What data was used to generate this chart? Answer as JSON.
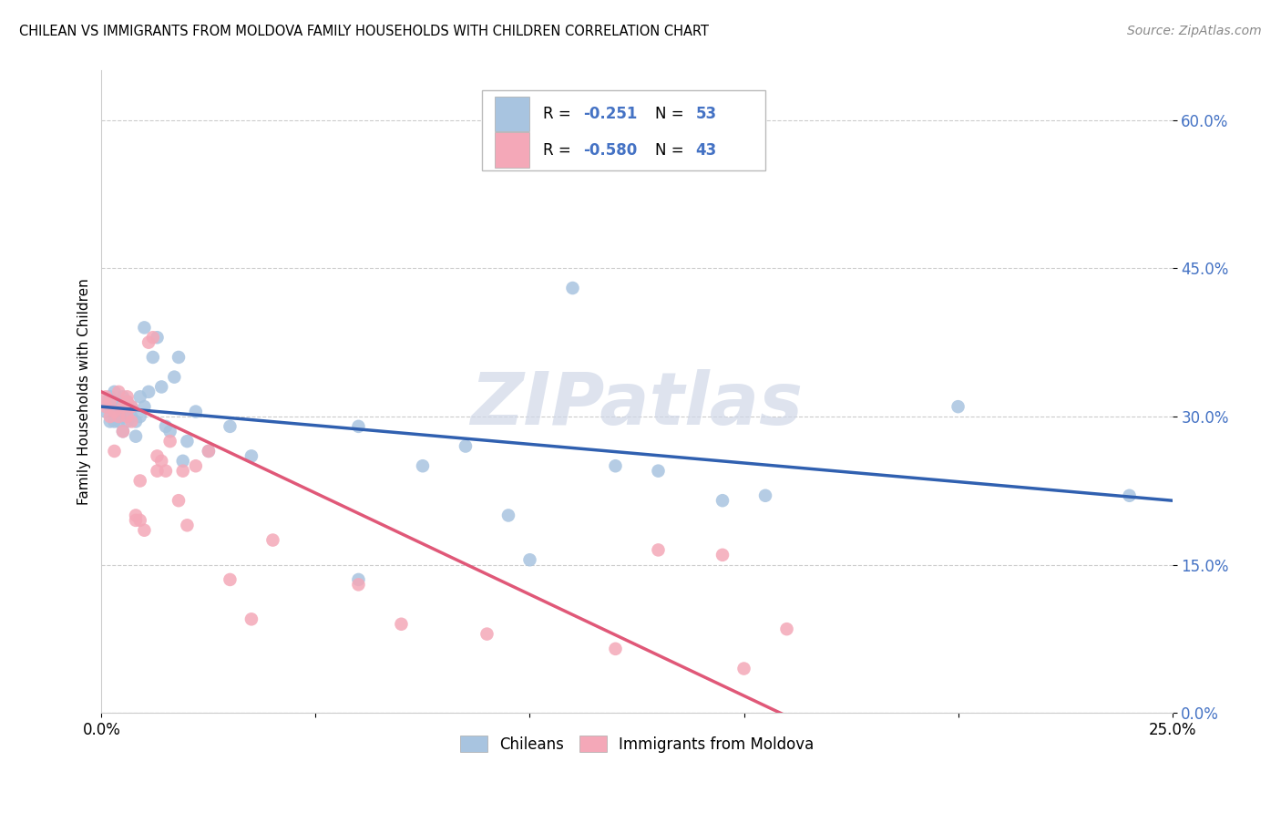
{
  "title": "CHILEAN VS IMMIGRANTS FROM MOLDOVA FAMILY HOUSEHOLDS WITH CHILDREN CORRELATION CHART",
  "source": "Source: ZipAtlas.com",
  "ylabel": "Family Households with Children",
  "xlim": [
    0.0,
    0.25
  ],
  "ylim": [
    0.0,
    0.65
  ],
  "yticks": [
    0.0,
    0.15,
    0.3,
    0.45,
    0.6
  ],
  "ytick_labels": [
    "0.0%",
    "15.0%",
    "30.0%",
    "45.0%",
    "60.0%"
  ],
  "xticks": [
    0.0,
    0.05,
    0.1,
    0.15,
    0.2,
    0.25
  ],
  "xtick_labels": [
    "0.0%",
    "",
    "",
    "",
    "",
    "25.0%"
  ],
  "grid_color": "#cccccc",
  "chilean_color": "#a8c4e0",
  "moldova_color": "#f4a8b8",
  "chilean_line_color": "#3060b0",
  "moldova_line_color": "#e05878",
  "legend_label1": "Chileans",
  "legend_label2": "Immigrants from Moldova",
  "watermark_text": "ZIPatlas",
  "chilean_x": [
    0.001,
    0.001,
    0.002,
    0.002,
    0.002,
    0.003,
    0.003,
    0.003,
    0.003,
    0.004,
    0.004,
    0.004,
    0.005,
    0.005,
    0.005,
    0.006,
    0.006,
    0.006,
    0.007,
    0.007,
    0.008,
    0.008,
    0.009,
    0.009,
    0.01,
    0.01,
    0.011,
    0.012,
    0.013,
    0.014,
    0.015,
    0.016,
    0.017,
    0.018,
    0.019,
    0.02,
    0.022,
    0.025,
    0.03,
    0.035,
    0.06,
    0.075,
    0.085,
    0.095,
    0.11,
    0.13,
    0.155,
    0.2,
    0.24,
    0.06,
    0.1,
    0.12,
    0.145
  ],
  "chilean_y": [
    0.305,
    0.315,
    0.295,
    0.31,
    0.32,
    0.305,
    0.295,
    0.31,
    0.325,
    0.305,
    0.295,
    0.315,
    0.3,
    0.32,
    0.285,
    0.305,
    0.295,
    0.315,
    0.3,
    0.31,
    0.28,
    0.295,
    0.3,
    0.32,
    0.39,
    0.31,
    0.325,
    0.36,
    0.38,
    0.33,
    0.29,
    0.285,
    0.34,
    0.36,
    0.255,
    0.275,
    0.305,
    0.265,
    0.29,
    0.26,
    0.29,
    0.25,
    0.27,
    0.2,
    0.43,
    0.245,
    0.22,
    0.31,
    0.22,
    0.135,
    0.155,
    0.25,
    0.215
  ],
  "moldova_x": [
    0.001,
    0.001,
    0.002,
    0.002,
    0.003,
    0.003,
    0.004,
    0.004,
    0.005,
    0.005,
    0.006,
    0.006,
    0.006,
    0.007,
    0.007,
    0.008,
    0.008,
    0.009,
    0.009,
    0.01,
    0.011,
    0.012,
    0.013,
    0.013,
    0.014,
    0.015,
    0.016,
    0.018,
    0.019,
    0.02,
    0.022,
    0.025,
    0.03,
    0.035,
    0.04,
    0.06,
    0.07,
    0.09,
    0.12,
    0.13,
    0.145,
    0.15,
    0.16
  ],
  "moldova_y": [
    0.31,
    0.32,
    0.3,
    0.315,
    0.265,
    0.305,
    0.3,
    0.325,
    0.31,
    0.285,
    0.3,
    0.315,
    0.32,
    0.295,
    0.31,
    0.2,
    0.195,
    0.235,
    0.195,
    0.185,
    0.375,
    0.38,
    0.245,
    0.26,
    0.255,
    0.245,
    0.275,
    0.215,
    0.245,
    0.19,
    0.25,
    0.265,
    0.135,
    0.095,
    0.175,
    0.13,
    0.09,
    0.08,
    0.065,
    0.165,
    0.16,
    0.045,
    0.085
  ],
  "chilean_intercept": 0.31,
  "chilean_slope": -0.38,
  "moldova_intercept": 0.325,
  "moldova_slope": -2.05,
  "moldova_line_xmax": 0.175
}
